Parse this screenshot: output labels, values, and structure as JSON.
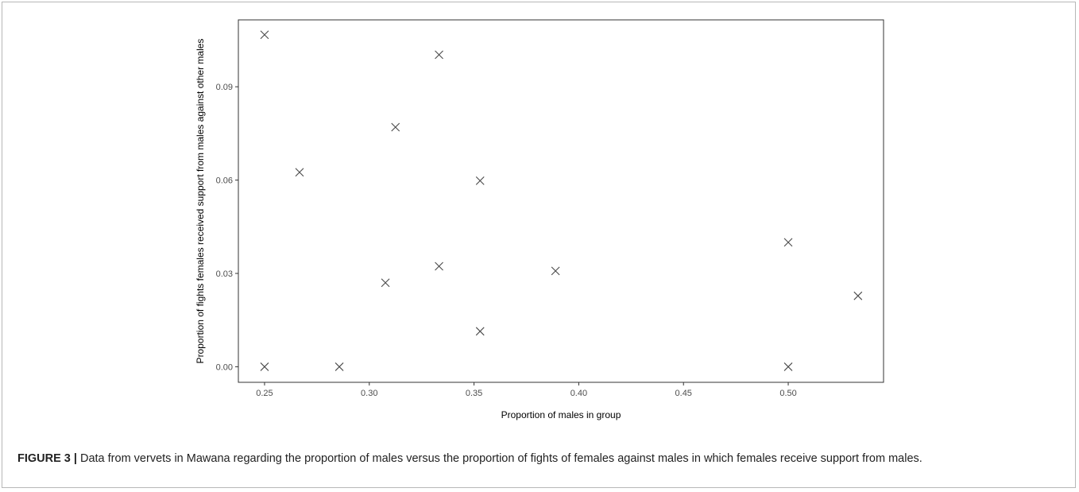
{
  "chart_data": {
    "type": "scatter",
    "title": "",
    "xlabel": "Proportion of males in group",
    "ylabel": "Proportion of fights females received support from males against other males",
    "xlim": [
      0.2375,
      0.5455
    ],
    "ylim": [
      -0.005,
      0.1115
    ],
    "xticks": [
      "0.25",
      "0.30",
      "0.35",
      "0.40",
      "0.45",
      "0.50"
    ],
    "yticks": [
      "0.00",
      "0.03",
      "0.06",
      "0.09"
    ],
    "grid": false,
    "legend": "none",
    "marker": "x",
    "series": [
      {
        "points": [
          {
            "x": 0.25,
            "y": 0.1067
          },
          {
            "x": 0.25,
            "y": 0.0
          },
          {
            "x": 0.2667,
            "y": 0.0625
          },
          {
            "x": 0.2857,
            "y": 0.0
          },
          {
            "x": 0.3077,
            "y": 0.027
          },
          {
            "x": 0.3125,
            "y": 0.077
          },
          {
            "x": 0.3333,
            "y": 0.1003
          },
          {
            "x": 0.3333,
            "y": 0.0323
          },
          {
            "x": 0.3529,
            "y": 0.0598
          },
          {
            "x": 0.3529,
            "y": 0.0114
          },
          {
            "x": 0.3889,
            "y": 0.0308
          },
          {
            "x": 0.5,
            "y": 0.04
          },
          {
            "x": 0.5,
            "y": 0.0
          },
          {
            "x": 0.5333,
            "y": 0.0228
          }
        ]
      }
    ]
  },
  "caption": {
    "label": "FIGURE 3 |",
    "text": " Data from vervets in Mawana regarding the proportion of males versus the proportion of fights of females against males in which females receive support from males."
  },
  "colors": {
    "marker": "#4a4a4a",
    "axis": "#333333",
    "tick_text": "#4d4d4d",
    "frame": "#b7b7b7"
  }
}
